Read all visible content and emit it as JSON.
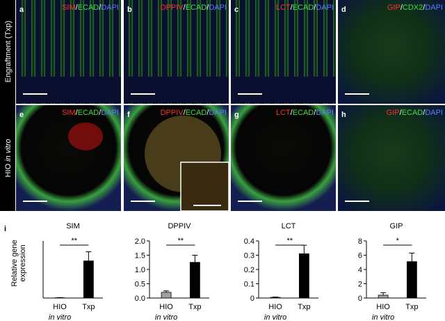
{
  "separator": "/",
  "row_labels": [
    {
      "main": "Engraftment (Txp)"
    },
    {
      "main": "HIO",
      "italic": "in vitro"
    }
  ],
  "panels": [
    {
      "letter": "a",
      "stain": [
        {
          "text": "SIM",
          "color": "#ff3030"
        },
        {
          "text": "ECAD",
          "color": "#40e040"
        },
        {
          "text": "DAPI",
          "color": "#5a7cff"
        }
      ]
    },
    {
      "letter": "b",
      "stain": [
        {
          "text": "DPPIV",
          "color": "#ff3030"
        },
        {
          "text": "ECAD",
          "color": "#40e040"
        },
        {
          "text": "DAPI",
          "color": "#5a7cff"
        }
      ]
    },
    {
      "letter": "c",
      "stain": [
        {
          "text": "LCT",
          "color": "#ff3030"
        },
        {
          "text": "ECAD",
          "color": "#40e040"
        },
        {
          "text": "DAPI",
          "color": "#5a7cff"
        }
      ]
    },
    {
      "letter": "d",
      "stain": [
        {
          "text": "GIP",
          "color": "#ff3030"
        },
        {
          "text": "CDX2",
          "color": "#40e040"
        },
        {
          "text": "DAPI",
          "color": "#5a7cff"
        }
      ]
    },
    {
      "letter": "e",
      "stain": [
        {
          "text": "SIM",
          "color": "#ff3030"
        },
        {
          "text": "ECAD",
          "color": "#40e040"
        },
        {
          "text": "DAPI",
          "color": "#5a7cff"
        }
      ]
    },
    {
      "letter": "f",
      "stain": [
        {
          "text": "DPPIV",
          "color": "#ff3030"
        },
        {
          "text": "ECAD",
          "color": "#40e040"
        },
        {
          "text": "DAPI",
          "color": "#5a7cff"
        }
      ]
    },
    {
      "letter": "g",
      "stain": [
        {
          "text": "LCT",
          "color": "#ff3030"
        },
        {
          "text": "ECAD",
          "color": "#40e040"
        },
        {
          "text": "DAPI",
          "color": "#5a7cff"
        }
      ]
    },
    {
      "letter": "h",
      "stain": [
        {
          "text": "GIP",
          "color": "#ff3030"
        },
        {
          "text": "ECAD",
          "color": "#40e040"
        },
        {
          "text": "DAPI",
          "color": "#5a7cff"
        }
      ]
    }
  ],
  "panel_i_letter": "i",
  "y_label": [
    "Relative gene",
    "expression"
  ],
  "chart_data": [
    {
      "type": "bar",
      "title": "SIM",
      "categories": [
        "HIO",
        "Txp"
      ],
      "category_note": "in vitro",
      "values": [
        0.005,
        0.65
      ],
      "errors": [
        0.003,
        0.16
      ],
      "colors": [
        "#a0a0a0",
        "#000000"
      ],
      "ylim": [
        0,
        1
      ],
      "annotation": "**"
    },
    {
      "type": "bar",
      "title": "DPPIV",
      "categories": [
        "HIO",
        "Txp"
      ],
      "category_note": "in vitro",
      "values": [
        0.2,
        1.25
      ],
      "errors": [
        0.05,
        0.25
      ],
      "colors": [
        "#a0a0a0",
        "#000000"
      ],
      "ylim": [
        0,
        2
      ],
      "yticks": [
        {
          "value": 0,
          "label": "0.0"
        },
        {
          "value": 0.5,
          "label": "0.5"
        },
        {
          "value": 1,
          "label": "1.0"
        },
        {
          "value": 1.5,
          "label": "1.5"
        },
        {
          "value": 2,
          "label": "2.0"
        }
      ],
      "annotation": "**"
    },
    {
      "type": "bar",
      "title": "LCT",
      "categories": [
        "HIO",
        "Txp"
      ],
      "category_note": "in vitro",
      "values": [
        0.005,
        0.31
      ],
      "errors": [
        0.002,
        0.06
      ],
      "colors": [
        "#a0a0a0",
        "#000000"
      ],
      "ylim": [
        0,
        0.4
      ],
      "yticks": [
        0,
        0.1,
        0.2,
        0.3,
        0.4
      ],
      "annotation": "**"
    },
    {
      "type": "bar",
      "title": "GIP",
      "categories": [
        "HIO",
        "Txp"
      ],
      "category_note": "in vitro",
      "values": [
        0.4,
        5.1
      ],
      "errors": [
        0.35,
        1.2
      ],
      "colors": [
        "#a0a0a0",
        "#000000"
      ],
      "ylim": [
        0,
        8
      ],
      "yticks": [
        0,
        2,
        4,
        6,
        8
      ],
      "annotation": "*"
    }
  ]
}
